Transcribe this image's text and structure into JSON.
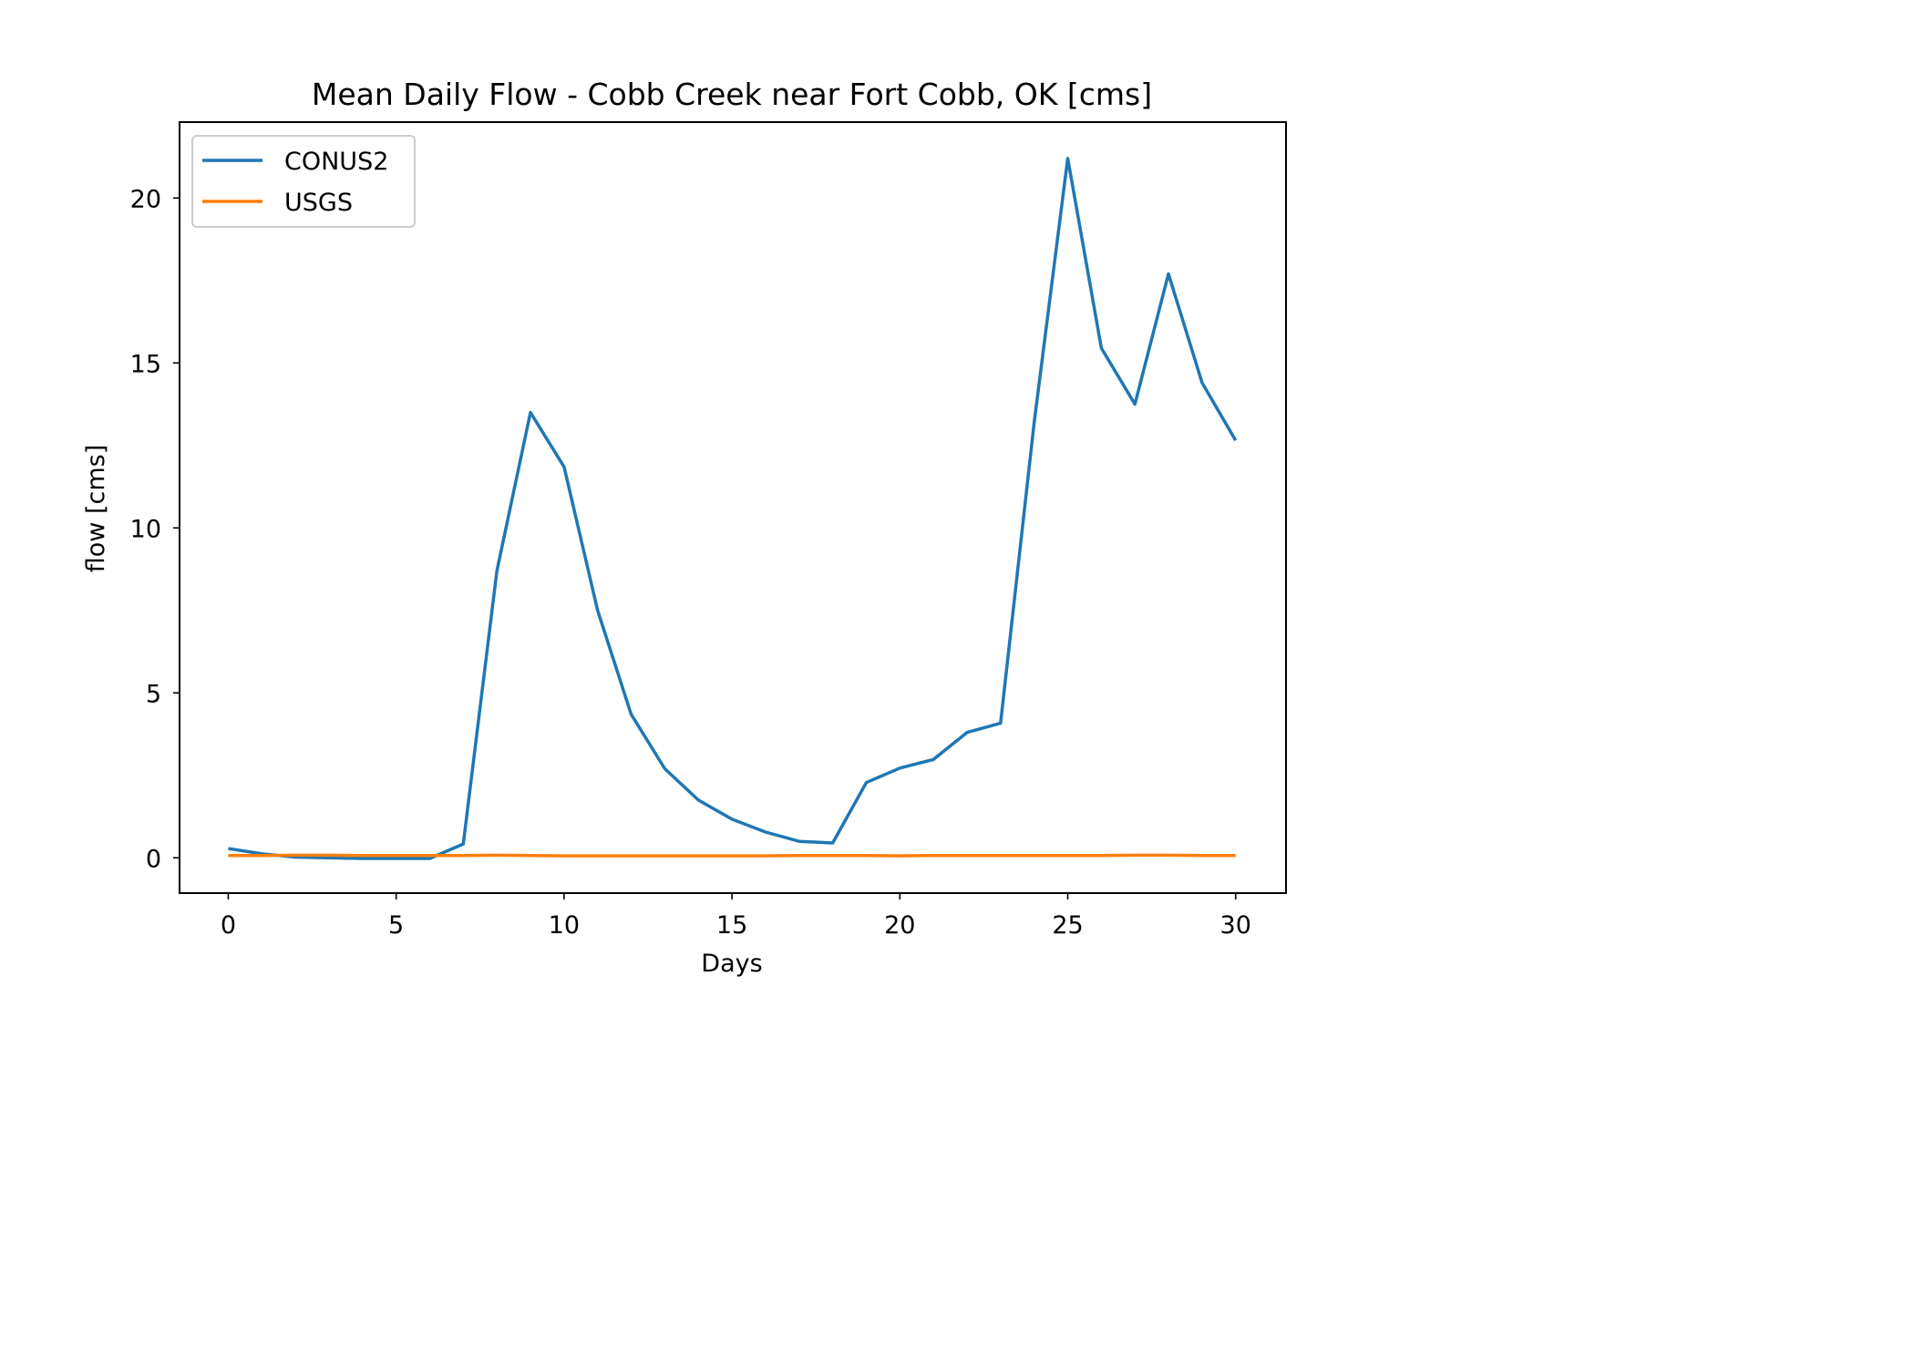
{
  "chart_data": {
    "type": "line",
    "title": "Mean Daily Flow - Cobb Creek near Fort Cobb, OK [cms]",
    "xlabel": "Days",
    "ylabel": "flow [cms]",
    "xlim": [
      -1.45,
      31.5
    ],
    "ylim": [
      -1.07,
      22.3
    ],
    "xticks": [
      0,
      5,
      10,
      15,
      20,
      25,
      30
    ],
    "yticks": [
      0,
      5,
      10,
      15,
      20
    ],
    "legend_position": "upper-left",
    "grid": false,
    "x": [
      0,
      1,
      2,
      3,
      4,
      5,
      6,
      7,
      8,
      9,
      10,
      11,
      12,
      13,
      14,
      15,
      16,
      17,
      18,
      19,
      20,
      21,
      22,
      23,
      24,
      25,
      26,
      27,
      28,
      29,
      30
    ],
    "series": [
      {
        "name": "CONUS2",
        "color": "#1f77b4",
        "values": [
          0.28,
          0.12,
          0.02,
          0.0,
          -0.02,
          -0.02,
          -0.02,
          0.42,
          8.7,
          13.5,
          11.85,
          7.5,
          4.35,
          2.7,
          1.75,
          1.17,
          0.78,
          0.5,
          0.45,
          2.28,
          2.72,
          2.98,
          3.8,
          4.08,
          13.2,
          21.2,
          15.45,
          13.75,
          17.7,
          14.4,
          12.65
        ]
      },
      {
        "name": "USGS",
        "color": "#ff7f0e",
        "values": [
          0.07,
          0.07,
          0.08,
          0.08,
          0.07,
          0.07,
          0.07,
          0.07,
          0.08,
          0.07,
          0.06,
          0.06,
          0.06,
          0.06,
          0.06,
          0.06,
          0.06,
          0.07,
          0.07,
          0.07,
          0.06,
          0.07,
          0.07,
          0.07,
          0.07,
          0.07,
          0.07,
          0.08,
          0.08,
          0.07,
          0.07
        ]
      }
    ]
  }
}
